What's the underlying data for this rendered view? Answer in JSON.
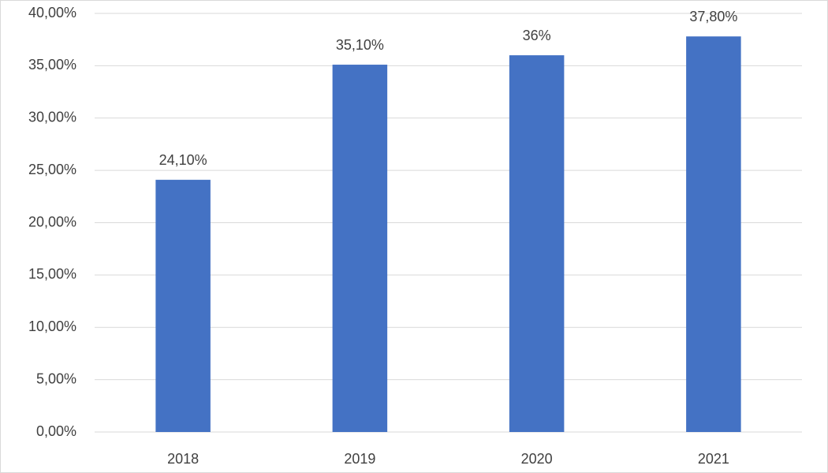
{
  "chart_data": {
    "type": "bar",
    "categories": [
      "2018",
      "2019",
      "2020",
      "2021"
    ],
    "values": [
      24.1,
      35.1,
      36,
      37.8
    ],
    "value_labels": [
      "24,10%",
      "35,10%",
      "36%",
      "37,80%"
    ],
    "color": "#4472c4",
    "ylim": [
      0,
      40
    ],
    "yticks": [
      {
        "value": 0,
        "label": "0,00%"
      },
      {
        "value": 5,
        "label": "5,00%"
      },
      {
        "value": 10,
        "label": "10,00%"
      },
      {
        "value": 15,
        "label": "15,00%"
      },
      {
        "value": 20,
        "label": "20,00%"
      },
      {
        "value": 25,
        "label": "25,00%"
      },
      {
        "value": 30,
        "label": "30,00%"
      },
      {
        "value": 35,
        "label": "35,00%"
      },
      {
        "value": 40,
        "label": "40,00%"
      }
    ],
    "grid": true
  }
}
